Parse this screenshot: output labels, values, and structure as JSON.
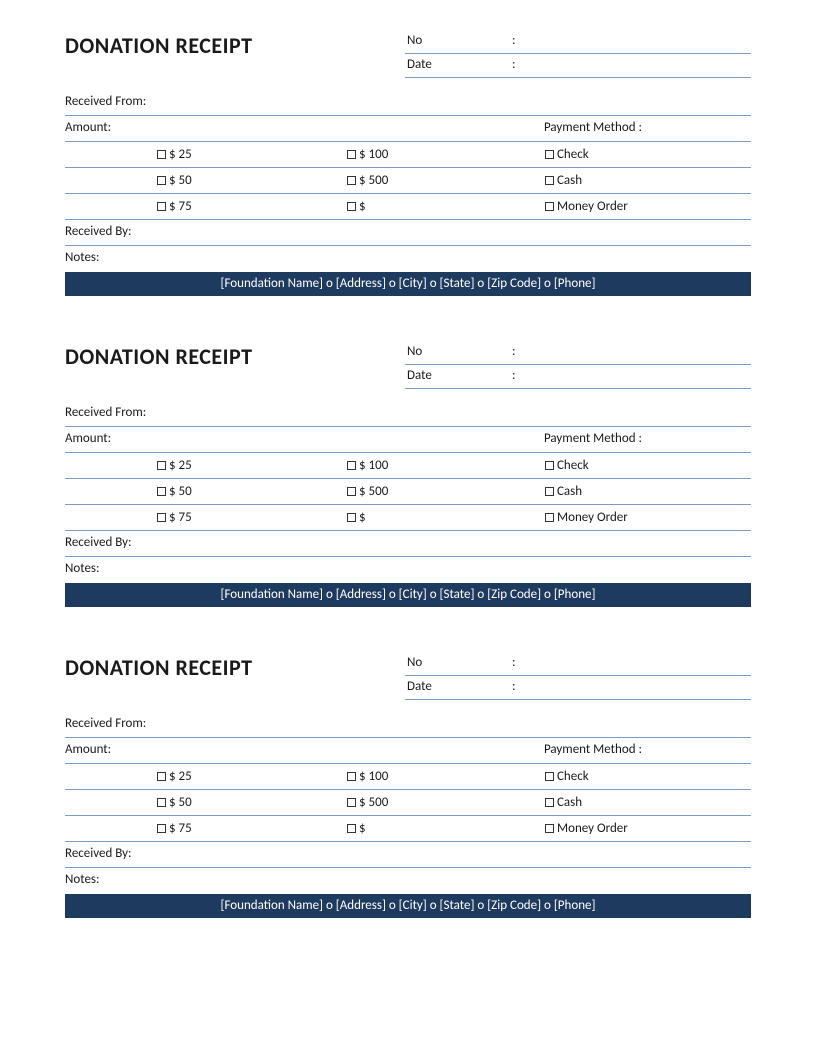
{
  "receipt": {
    "title": "DONATION RECEIPT",
    "meta": {
      "no_label": "No",
      "no_colon": ":",
      "no_value": "",
      "date_label": "Date",
      "date_colon": ":",
      "date_value": ""
    },
    "received_from_label": "Received From:",
    "amount_label": "Amount:",
    "payment_method_label": "Payment Method :",
    "amounts_col1": [
      "$ 25",
      "$ 50",
      "$ 75"
    ],
    "amounts_col2": [
      "$ 100",
      "$ 500",
      "$"
    ],
    "payment_methods": [
      "Check",
      "Cash",
      "Money Order"
    ],
    "received_by_label": "Received By:",
    "notes_label": "Notes:",
    "footer": "[Foundation Name] o [Address] o [City] o [State] o [Zip Code] o [Phone]"
  },
  "colors": {
    "border": "#7a9bc4",
    "footer_bg": "#1f3a5f",
    "footer_text": "#ffffff",
    "text": "#1a1a1a"
  },
  "copies": 3
}
